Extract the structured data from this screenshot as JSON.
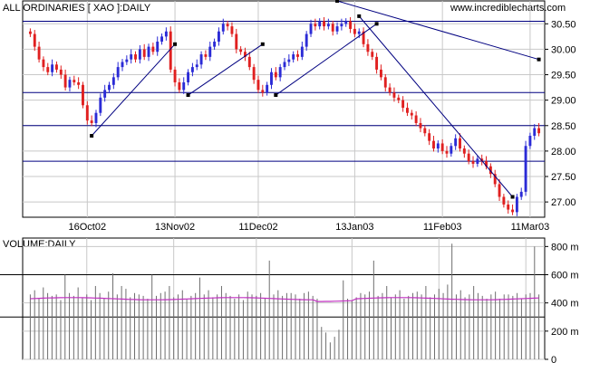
{
  "header": {
    "title": "ALL ORDINARIES [ XAO ]:DAILY",
    "source": "www.incrediblecharts.com"
  },
  "chart_data": [
    {
      "type": "candlestick",
      "title": "ALL ORDINARIES [ XAO ]:DAILY",
      "ylim": [
        26.7,
        30.95
      ],
      "yticks": [
        "30.50",
        "30.00",
        "29.50",
        "29.00",
        "28.50",
        "28.00",
        "27.50",
        "27.00"
      ],
      "ytick_values": [
        30.5,
        30.0,
        29.5,
        29.0,
        28.5,
        28.0,
        27.5,
        27.0
      ],
      "x_tick_labels": [
        "16Oct02",
        "13Nov02",
        "11Dec02",
        "13Jan03",
        "11Feb03",
        "11Mar03"
      ],
      "x_tick_index": [
        13,
        33,
        52,
        74,
        94,
        114
      ],
      "grid": true,
      "close": [
        30.3,
        30.05,
        29.8,
        29.65,
        29.55,
        29.7,
        29.6,
        29.5,
        29.25,
        29.4,
        29.35,
        29.3,
        28.9,
        28.6,
        28.55,
        28.75,
        29.05,
        29.2,
        29.3,
        29.45,
        29.65,
        29.75,
        29.8,
        29.9,
        29.8,
        30.0,
        29.85,
        30.05,
        29.95,
        30.15,
        30.25,
        30.35,
        29.6,
        29.35,
        29.2,
        29.35,
        29.55,
        29.65,
        29.7,
        29.9,
        29.85,
        30.05,
        30.15,
        30.35,
        30.5,
        30.45,
        30.3,
        30.0,
        29.95,
        29.85,
        29.65,
        29.4,
        29.2,
        29.15,
        29.3,
        29.55,
        29.45,
        29.65,
        29.75,
        29.8,
        29.9,
        29.85,
        30.05,
        30.3,
        30.5,
        30.45,
        30.55,
        30.45,
        30.5,
        30.35,
        30.45,
        30.5,
        30.55,
        30.4,
        30.3,
        30.35,
        30.1,
        29.95,
        29.85,
        29.6,
        29.45,
        29.25,
        29.15,
        29.05,
        29.0,
        28.85,
        28.75,
        28.7,
        28.55,
        28.45,
        28.35,
        28.2,
        28.05,
        28.15,
        28.0,
        27.95,
        28.1,
        28.25,
        28.05,
        27.95,
        27.8,
        27.75,
        27.85,
        27.8,
        27.7,
        27.55,
        27.35,
        27.1,
        26.95,
        26.85,
        26.8,
        27.1,
        27.2,
        28.1,
        28.3,
        28.45,
        28.35
      ],
      "overlays": {
        "horizontal_levels": [
          30.55,
          29.15,
          28.5,
          27.8
        ],
        "trendlines": [
          {
            "from": [
              14,
              28.3
            ],
            "to": [
              33,
              30.1
            ]
          },
          {
            "from": [
              36,
              29.1
            ],
            "to": [
              53,
              30.1
            ]
          },
          {
            "from": [
              56,
              29.1
            ],
            "to": [
              79,
              30.5
            ]
          },
          {
            "from": [
              75,
              30.65
            ],
            "to": [
              110,
              27.1
            ]
          },
          {
            "from": [
              70,
              30.95
            ],
            "to": [
              116,
              29.8
            ]
          }
        ]
      }
    },
    {
      "type": "bar",
      "title": "VOLUME:DAILY",
      "unit": "m",
      "ylim": [
        0,
        860
      ],
      "yticks": [
        "800 m",
        "600 m",
        "400 m",
        "200 m",
        "0"
      ],
      "ytick_values": [
        800,
        600,
        400,
        200,
        0
      ],
      "reference_levels": [
        600,
        300
      ],
      "moving_average": 430,
      "values": [
        460,
        490,
        430,
        510,
        470,
        450,
        460,
        420,
        600,
        470,
        450,
        510,
        440,
        460,
        420,
        520,
        470,
        430,
        480,
        610,
        460,
        520,
        500,
        440,
        470,
        460,
        450,
        430,
        600,
        450,
        470,
        480,
        520,
        440,
        460,
        490,
        430,
        450,
        470,
        580,
        460,
        490,
        440,
        460,
        520,
        470,
        450,
        430,
        460,
        420,
        480,
        460,
        450,
        470,
        430,
        700,
        460,
        490,
        450,
        470,
        470,
        460,
        430,
        470,
        480,
        450,
        430,
        230,
        190,
        120,
        160,
        210,
        560,
        430,
        420,
        440,
        470,
        460,
        480,
        700,
        450,
        470,
        520,
        440,
        460,
        490,
        430,
        450,
        470,
        480,
        460,
        520,
        440,
        460,
        500,
        470,
        530,
        820,
        460,
        490,
        440,
        460,
        520,
        470,
        450,
        430,
        460,
        480,
        430,
        460,
        460,
        450,
        470,
        430,
        460,
        470,
        800,
        460
      ]
    }
  ]
}
